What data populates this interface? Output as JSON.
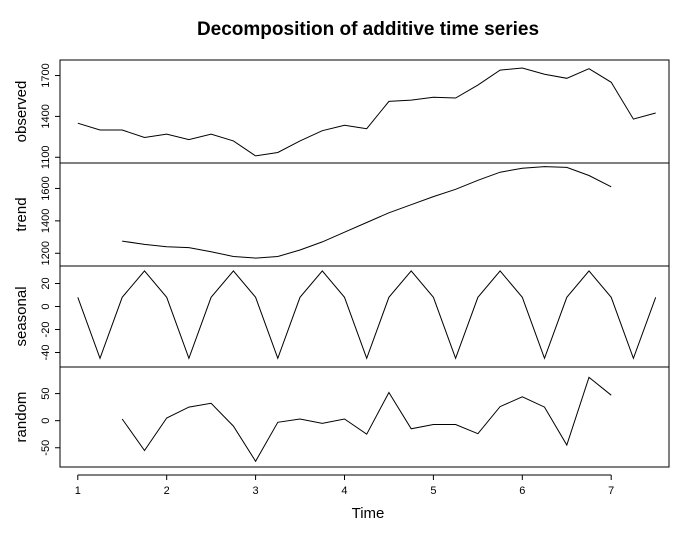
{
  "chart_data": {
    "type": "line",
    "title": "Decomposition of additive time series",
    "xlabel": "Time",
    "xlim": [
      0.8,
      7.65
    ],
    "xticks": [
      1,
      2,
      3,
      4,
      5,
      6,
      7
    ],
    "x": [
      1,
      1.25,
      1.5,
      1.75,
      2,
      2.25,
      2.5,
      2.75,
      3,
      3.25,
      3.5,
      3.75,
      4,
      4.25,
      4.5,
      4.75,
      5,
      5.25,
      5.5,
      5.75,
      6,
      6.25,
      6.5,
      6.75,
      7,
      7.25,
      7.5
    ],
    "grid": false,
    "panels": [
      {
        "name": "observed",
        "ylabel": "observed",
        "ylim": [
          1080,
          1770
        ],
        "yticks": [
          1100,
          1400,
          1700
        ],
        "values": [
          1350,
          1300,
          1300,
          1245,
          1270,
          1230,
          1270,
          1220,
          1110,
          1135,
          1220,
          1295,
          1335,
          1310,
          1510,
          1520,
          1540,
          1535,
          1630,
          1740,
          1755,
          1710,
          1680,
          1750,
          1650,
          1380,
          1425
        ]
      },
      {
        "name": "trend",
        "ylabel": "trend",
        "ylim": [
          1140,
          1720
        ],
        "yticks": [
          1200,
          1400,
          1600
        ],
        "extra_tick_labels": [
          "1200",
          "1400",
          "1600",
          "1600"
        ],
        "values": [
          null,
          null,
          1275,
          1255,
          1240,
          1235,
          1210,
          1180,
          1170,
          1180,
          1220,
          1270,
          1330,
          1390,
          1450,
          1500,
          1550,
          1595,
          1650,
          1700,
          1725,
          1735,
          1730,
          1680,
          1610,
          null,
          null
        ]
      },
      {
        "name": "seasonal",
        "ylabel": "seasonal",
        "ylim": [
          -50,
          30
        ],
        "yticks": [
          -40,
          -20,
          0,
          20
        ],
        "values": [
          8,
          -45,
          8,
          31,
          8,
          -45,
          8,
          31,
          8,
          -45,
          8,
          31,
          8,
          -45,
          8,
          31,
          8,
          -45,
          8,
          31,
          8,
          -45,
          8,
          31,
          8,
          -45,
          8
        ]
      },
      {
        "name": "random",
        "ylabel": "random",
        "ylim": [
          -80,
          88
        ],
        "yticks": [
          -50,
          0,
          50
        ],
        "values": [
          null,
          null,
          3,
          -55,
          5,
          25,
          32,
          -10,
          -75,
          -3,
          3,
          -5,
          3,
          -25,
          52,
          -15,
          -7,
          -7,
          -24,
          26,
          44,
          25,
          -45,
          80,
          47,
          null,
          null
        ]
      }
    ]
  }
}
